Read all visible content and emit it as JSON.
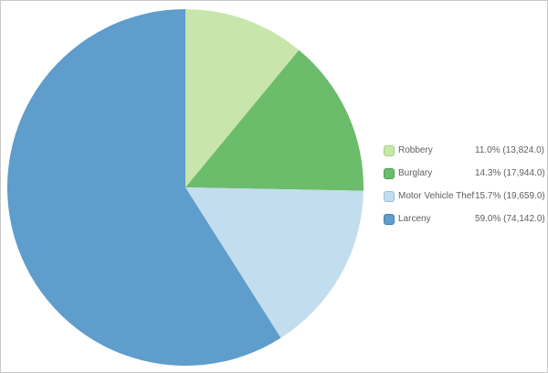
{
  "chart_data": {
    "type": "pie",
    "title": "",
    "start_angle_deg": 0,
    "direction": "clockwise",
    "legend_position": "right",
    "slices": [
      {
        "label": "Robbery",
        "percent": 11.0,
        "value": 13824.0,
        "display": "11.0% (13,824.0)",
        "color": "#c8e6ab",
        "swatch_border": "#a5d17f"
      },
      {
        "label": "Burglary",
        "percent": 14.3,
        "value": 17944.0,
        "display": "14.3% (17,944.0)",
        "color": "#6bbc6b",
        "swatch_border": "#4f9e4f"
      },
      {
        "label": "Motor Vehicle Theft",
        "percent": 15.7,
        "value": 19659.0,
        "display": "15.7% (19,659.0)",
        "color": "#c2ddee",
        "swatch_border": "#92bfda"
      },
      {
        "label": "Larceny",
        "percent": 59.0,
        "value": 74142.0,
        "display": "59.0% (74,142.0)",
        "color": "#5e9dcc",
        "swatch_border": "#4081b4"
      }
    ]
  },
  "canvas": {
    "background": "#ffffff",
    "border_color": "#c9c9c9",
    "text_color": "#5f5f5f"
  }
}
